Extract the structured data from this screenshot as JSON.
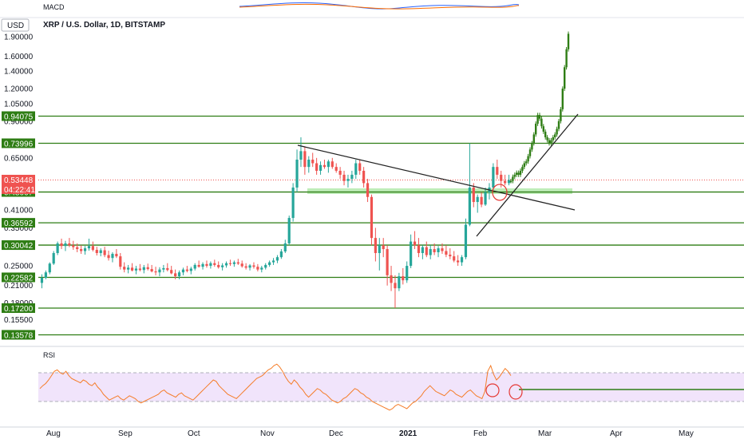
{
  "colors": {
    "level_line": "#2e7d14",
    "level_label_bg": "#2e7d14",
    "up": "#26a69a",
    "down": "#ef5350",
    "projection": "#2e7d14",
    "trendline": "#222222",
    "rsi_line": "#f57c28",
    "rsi_band": "#f1e4fb",
    "price_label_red": "#ef5350",
    "zone": "#a8e6a0"
  },
  "chart_data": {
    "type": "candlestick",
    "title": "XRP / U.S. Dollar, 1D, BITSTAMP",
    "currency_badge": "USD",
    "macd_label": "MACD",
    "rsi_label": "RSI",
    "x_labels": [
      "Aug",
      "Sep",
      "Oct",
      "Nov",
      "Dec",
      "2021",
      "Feb",
      "Mar",
      "Apr",
      "May"
    ],
    "bold_x_label": "2021",
    "y_scale": "log",
    "y_ticks": [
      "1.90000",
      "1.60000",
      "1.40000",
      "1.20000",
      "1.05000",
      "0.90000",
      "0.65000",
      "0.41000",
      "0.35000",
      "0.25000",
      "0.21000",
      "0.18000",
      "0.15500"
    ],
    "price_levels": [
      "0.94075",
      "0.73996",
      "0.48067",
      "0.36592",
      "0.30042",
      "0.22582",
      "0.17200",
      "0.13578"
    ],
    "current_price": "0.53448",
    "countdown": "04:22:41",
    "ohlc": [
      [
        0.215,
        0.232,
        0.205,
        0.225
      ],
      [
        0.225,
        0.24,
        0.222,
        0.236
      ],
      [
        0.236,
        0.258,
        0.232,
        0.255
      ],
      [
        0.255,
        0.285,
        0.252,
        0.28
      ],
      [
        0.28,
        0.31,
        0.275,
        0.305
      ],
      [
        0.305,
        0.318,
        0.29,
        0.298
      ],
      [
        0.298,
        0.312,
        0.285,
        0.305
      ],
      [
        0.305,
        0.32,
        0.295,
        0.3
      ],
      [
        0.3,
        0.312,
        0.288,
        0.295
      ],
      [
        0.295,
        0.305,
        0.282,
        0.29
      ],
      [
        0.29,
        0.3,
        0.278,
        0.285
      ],
      [
        0.285,
        0.298,
        0.276,
        0.292
      ],
      [
        0.292,
        0.318,
        0.286,
        0.298
      ],
      [
        0.298,
        0.31,
        0.284,
        0.288
      ],
      [
        0.288,
        0.296,
        0.274,
        0.28
      ],
      [
        0.28,
        0.292,
        0.272,
        0.287
      ],
      [
        0.287,
        0.296,
        0.27,
        0.275
      ],
      [
        0.275,
        0.286,
        0.262,
        0.268
      ],
      [
        0.268,
        0.282,
        0.258,
        0.278
      ],
      [
        0.278,
        0.29,
        0.268,
        0.272
      ],
      [
        0.272,
        0.28,
        0.242,
        0.248
      ],
      [
        0.248,
        0.258,
        0.236,
        0.242
      ],
      [
        0.242,
        0.252,
        0.234,
        0.246
      ],
      [
        0.246,
        0.256,
        0.238,
        0.24
      ],
      [
        0.24,
        0.25,
        0.232,
        0.244
      ],
      [
        0.244,
        0.254,
        0.238,
        0.241
      ],
      [
        0.241,
        0.252,
        0.234,
        0.247
      ],
      [
        0.247,
        0.255,
        0.24,
        0.243
      ],
      [
        0.243,
        0.252,
        0.236,
        0.238
      ],
      [
        0.238,
        0.248,
        0.23,
        0.236
      ],
      [
        0.236,
        0.247,
        0.228,
        0.242
      ],
      [
        0.242,
        0.252,
        0.236,
        0.245
      ],
      [
        0.245,
        0.256,
        0.238,
        0.241
      ],
      [
        0.241,
        0.25,
        0.232,
        0.234
      ],
      [
        0.234,
        0.242,
        0.222,
        0.228
      ],
      [
        0.228,
        0.24,
        0.222,
        0.236
      ],
      [
        0.236,
        0.246,
        0.23,
        0.242
      ],
      [
        0.242,
        0.25,
        0.236,
        0.239
      ],
      [
        0.239,
        0.248,
        0.232,
        0.244
      ],
      [
        0.244,
        0.256,
        0.24,
        0.252
      ],
      [
        0.252,
        0.262,
        0.246,
        0.248
      ],
      [
        0.248,
        0.258,
        0.242,
        0.254
      ],
      [
        0.254,
        0.262,
        0.246,
        0.25
      ],
      [
        0.25,
        0.26,
        0.244,
        0.256
      ],
      [
        0.256,
        0.264,
        0.248,
        0.252
      ],
      [
        0.252,
        0.26,
        0.244,
        0.247
      ],
      [
        0.247,
        0.256,
        0.24,
        0.251
      ],
      [
        0.251,
        0.26,
        0.246,
        0.256
      ],
      [
        0.256,
        0.264,
        0.25,
        0.254
      ],
      [
        0.254,
        0.262,
        0.248,
        0.258
      ],
      [
        0.258,
        0.266,
        0.252,
        0.255
      ],
      [
        0.255,
        0.262,
        0.246,
        0.249
      ],
      [
        0.249,
        0.256,
        0.242,
        0.246
      ],
      [
        0.246,
        0.254,
        0.24,
        0.251
      ],
      [
        0.251,
        0.258,
        0.244,
        0.248
      ],
      [
        0.248,
        0.254,
        0.238,
        0.242
      ],
      [
        0.242,
        0.25,
        0.236,
        0.246
      ],
      [
        0.246,
        0.256,
        0.242,
        0.252
      ],
      [
        0.252,
        0.262,
        0.248,
        0.258
      ],
      [
        0.258,
        0.268,
        0.252,
        0.262
      ],
      [
        0.262,
        0.275,
        0.256,
        0.27
      ],
      [
        0.27,
        0.29,
        0.266,
        0.284
      ],
      [
        0.284,
        0.315,
        0.28,
        0.305
      ],
      [
        0.305,
        0.39,
        0.3,
        0.382
      ],
      [
        0.382,
        0.52,
        0.37,
        0.5
      ],
      [
        0.5,
        0.7,
        0.48,
        0.64
      ],
      [
        0.64,
        0.78,
        0.6,
        0.69
      ],
      [
        0.69,
        0.72,
        0.56,
        0.6
      ],
      [
        0.6,
        0.66,
        0.57,
        0.64
      ],
      [
        0.64,
        0.68,
        0.6,
        0.62
      ],
      [
        0.62,
        0.65,
        0.56,
        0.58
      ],
      [
        0.58,
        0.63,
        0.56,
        0.61
      ],
      [
        0.61,
        0.64,
        0.59,
        0.6
      ],
      [
        0.6,
        0.64,
        0.57,
        0.63
      ],
      [
        0.63,
        0.65,
        0.59,
        0.6
      ],
      [
        0.6,
        0.62,
        0.57,
        0.58
      ],
      [
        0.58,
        0.6,
        0.54,
        0.56
      ],
      [
        0.56,
        0.58,
        0.51,
        0.53
      ],
      [
        0.53,
        0.56,
        0.5,
        0.54
      ],
      [
        0.54,
        0.58,
        0.52,
        0.56
      ],
      [
        0.56,
        0.64,
        0.54,
        0.62
      ],
      [
        0.62,
        0.64,
        0.56,
        0.58
      ],
      [
        0.58,
        0.6,
        0.5,
        0.52
      ],
      [
        0.52,
        0.54,
        0.44,
        0.46
      ],
      [
        0.46,
        0.47,
        0.3,
        0.32
      ],
      [
        0.32,
        0.35,
        0.26,
        0.28
      ],
      [
        0.28,
        0.32,
        0.24,
        0.3
      ],
      [
        0.3,
        0.32,
        0.27,
        0.29
      ],
      [
        0.29,
        0.3,
        0.21,
        0.23
      ],
      [
        0.23,
        0.25,
        0.2,
        0.215
      ],
      [
        0.215,
        0.23,
        0.172,
        0.205
      ],
      [
        0.205,
        0.235,
        0.2,
        0.228
      ],
      [
        0.228,
        0.245,
        0.212,
        0.22
      ],
      [
        0.22,
        0.26,
        0.215,
        0.25
      ],
      [
        0.25,
        0.33,
        0.245,
        0.31
      ],
      [
        0.31,
        0.34,
        0.29,
        0.3
      ],
      [
        0.3,
        0.32,
        0.27,
        0.28
      ],
      [
        0.28,
        0.3,
        0.265,
        0.295
      ],
      [
        0.295,
        0.31,
        0.27,
        0.275
      ],
      [
        0.275,
        0.3,
        0.265,
        0.29
      ],
      [
        0.29,
        0.305,
        0.275,
        0.282
      ],
      [
        0.282,
        0.298,
        0.27,
        0.292
      ],
      [
        0.292,
        0.305,
        0.278,
        0.285
      ],
      [
        0.285,
        0.3,
        0.27,
        0.276
      ],
      [
        0.276,
        0.292,
        0.265,
        0.272
      ],
      [
        0.272,
        0.285,
        0.258,
        0.262
      ],
      [
        0.262,
        0.275,
        0.25,
        0.258
      ],
      [
        0.258,
        0.275,
        0.25,
        0.27
      ],
      [
        0.27,
        0.38,
        0.265,
        0.36
      ],
      [
        0.36,
        0.74,
        0.355,
        0.5
      ],
      [
        0.5,
        0.52,
        0.42,
        0.44
      ],
      [
        0.44,
        0.47,
        0.4,
        0.46
      ],
      [
        0.46,
        0.48,
        0.42,
        0.43
      ],
      [
        0.43,
        0.5,
        0.425,
        0.48
      ],
      [
        0.48,
        0.52,
        0.45,
        0.5
      ],
      [
        0.5,
        0.62,
        0.49,
        0.6
      ],
      [
        0.6,
        0.64,
        0.54,
        0.56
      ],
      [
        0.56,
        0.58,
        0.5,
        0.53
      ],
      [
        0.53,
        0.56,
        0.51,
        0.52
      ],
      [
        0.52,
        0.56,
        0.51,
        0.534
      ]
    ],
    "projection": [
      0.53,
      0.55,
      0.56,
      0.57,
      0.56,
      0.58,
      0.6,
      0.62,
      0.63,
      0.66,
      0.7,
      0.74,
      0.8,
      0.88,
      0.95,
      0.92,
      0.86,
      0.82,
      0.78,
      0.76,
      0.74,
      0.76,
      0.78,
      0.8,
      0.84,
      0.9,
      1.0,
      1.2,
      1.45,
      1.7,
      1.95
    ],
    "rsi": [
      48,
      52,
      55,
      60,
      66,
      72,
      74,
      70,
      68,
      72,
      66,
      62,
      60,
      58,
      56,
      60,
      58,
      54,
      52,
      56,
      50,
      46,
      40,
      36,
      32,
      34,
      36,
      38,
      34,
      32,
      35,
      38,
      36,
      34,
      30,
      28,
      30,
      32,
      34,
      36,
      38,
      40,
      44,
      46,
      42,
      40,
      38,
      36,
      40,
      42,
      38,
      36,
      34,
      32,
      36,
      40,
      44,
      48,
      52,
      56,
      60,
      58,
      52,
      48,
      44,
      40,
      38,
      36,
      34,
      38,
      42,
      46,
      50,
      54,
      58,
      62,
      64,
      66,
      70,
      74,
      76,
      80,
      82,
      78,
      72,
      64,
      58,
      54,
      60,
      56,
      50,
      46,
      40,
      36,
      40,
      44,
      48,
      46,
      42,
      40,
      36,
      32,
      30,
      28,
      30,
      34,
      36,
      40,
      44,
      48,
      46,
      42,
      40,
      36,
      34,
      30,
      28,
      26,
      24,
      22,
      20,
      18,
      20,
      24,
      26,
      24,
      22,
      20,
      24,
      28,
      30,
      34,
      38,
      44,
      48,
      52,
      48,
      44,
      42,
      40,
      38,
      42,
      46,
      44,
      40,
      38,
      36,
      40,
      44,
      46,
      42,
      38,
      36,
      34,
      44,
      72,
      80,
      68,
      60,
      64,
      70,
      76,
      72,
      66
    ],
    "rsi_bounds": [
      30,
      70
    ]
  }
}
